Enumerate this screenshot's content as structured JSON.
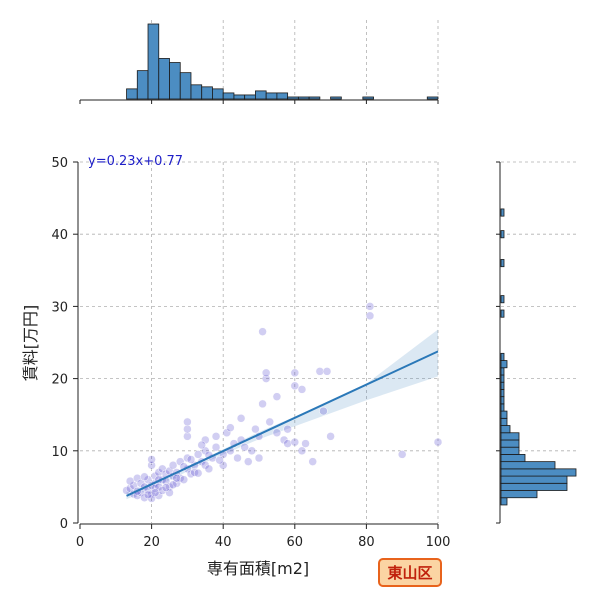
{
  "chart_data": {
    "type": "scatter",
    "title": "",
    "xlabel": "専有面積[m2]",
    "ylabel": "賃料[万円]",
    "xlim": [
      0,
      100
    ],
    "ylim": [
      0,
      50
    ],
    "xticks": [
      0,
      20,
      40,
      60,
      80,
      100
    ],
    "yticks": [
      0,
      10,
      20,
      30,
      40,
      50
    ],
    "grid": true,
    "regression": {
      "equation": "y=0.23x+0.77",
      "slope": 0.23,
      "intercept": 0.77,
      "x_range": [
        13,
        100
      ],
      "ci_lower": [
        [
          13,
          3.3
        ],
        [
          25,
          5.9
        ],
        [
          35,
          8.4
        ],
        [
          50,
          11.6
        ],
        [
          65,
          14.3
        ],
        [
          80,
          17.0
        ],
        [
          100,
          20.3
        ]
      ],
      "ci_upper": [
        [
          13,
          4.3
        ],
        [
          25,
          6.6
        ],
        [
          35,
          9.0
        ],
        [
          50,
          12.6
        ],
        [
          65,
          15.8
        ],
        [
          80,
          19.3
        ],
        [
          100,
          26.8
        ]
      ]
    },
    "points": [
      [
        13,
        4.5
      ],
      [
        14,
        4.8
      ],
      [
        15,
        5.2
      ],
      [
        15,
        4.0
      ],
      [
        16,
        3.8
      ],
      [
        16,
        6.2
      ],
      [
        17,
        5.5
      ],
      [
        17,
        4.2
      ],
      [
        18,
        5.0
      ],
      [
        18,
        3.5
      ],
      [
        19,
        4.6
      ],
      [
        19,
        6.0
      ],
      [
        20,
        5.2
      ],
      [
        20,
        8.0
      ],
      [
        20,
        8.8
      ],
      [
        20,
        4.0
      ],
      [
        20,
        3.4
      ],
      [
        21,
        5.5
      ],
      [
        21,
        6.5
      ],
      [
        21,
        4.8
      ],
      [
        22,
        7.0
      ],
      [
        22,
        5.0
      ],
      [
        22,
        3.8
      ],
      [
        23,
        6.0
      ],
      [
        23,
        4.5
      ],
      [
        23,
        7.5
      ],
      [
        24,
        5.8
      ],
      [
        24,
        6.8
      ],
      [
        25,
        5.0
      ],
      [
        25,
        7.2
      ],
      [
        25,
        4.2
      ],
      [
        26,
        6.5
      ],
      [
        26,
        8.0
      ],
      [
        27,
        5.5
      ],
      [
        27,
        7.0
      ],
      [
        28,
        6.2
      ],
      [
        28,
        8.5
      ],
      [
        29,
        6.0
      ],
      [
        30,
        7.5
      ],
      [
        30,
        12.0
      ],
      [
        30,
        13.0
      ],
      [
        30,
        14.0
      ],
      [
        30,
        9.0
      ],
      [
        31,
        6.8
      ],
      [
        32,
        8.0
      ],
      [
        32,
        7.0
      ],
      [
        33,
        9.5
      ],
      [
        34,
        8.5
      ],
      [
        35,
        8.0
      ],
      [
        35,
        10.0
      ],
      [
        35,
        11.5
      ],
      [
        36,
        7.5
      ],
      [
        37,
        9.0
      ],
      [
        38,
        10.5
      ],
      [
        38,
        12.0
      ],
      [
        40,
        9.5
      ],
      [
        40,
        8.0
      ],
      [
        41,
        12.5
      ],
      [
        42,
        10.0
      ],
      [
        43,
        11.0
      ],
      [
        44,
        9.0
      ],
      [
        45,
        11.5
      ],
      [
        45,
        14.5
      ],
      [
        47,
        8.5
      ],
      [
        48,
        10.0
      ],
      [
        50,
        9.0
      ],
      [
        50,
        12.0
      ],
      [
        51,
        16.5
      ],
      [
        52,
        20.0
      ],
      [
        52,
        20.8
      ],
      [
        51,
        26.5
      ],
      [
        53,
        14.0
      ],
      [
        55,
        12.5
      ],
      [
        55,
        17.5
      ],
      [
        57,
        11.5
      ],
      [
        58,
        13.0
      ],
      [
        58,
        11.0
      ],
      [
        60,
        20.8
      ],
      [
        60,
        11.2
      ],
      [
        60,
        19.0
      ],
      [
        62,
        18.5
      ],
      [
        62,
        10.0
      ],
      [
        63,
        11.0
      ],
      [
        65,
        8.5
      ],
      [
        67,
        21.0
      ],
      [
        68,
        15.5
      ],
      [
        69,
        21.0
      ],
      [
        70,
        12.0
      ],
      [
        81,
        30.0
      ],
      [
        81,
        28.7
      ],
      [
        90,
        9.5
      ],
      [
        100,
        11.2
      ],
      [
        14,
        5.8
      ],
      [
        16,
        4.4
      ],
      [
        18,
        6.4
      ],
      [
        19,
        3.9
      ],
      [
        21,
        4.2
      ],
      [
        22,
        6.0
      ],
      [
        24,
        4.9
      ],
      [
        26,
        5.3
      ],
      [
        27,
        6.2
      ],
      [
        29,
        7.8
      ],
      [
        31,
        8.8
      ],
      [
        33,
        6.9
      ],
      [
        34,
        10.8
      ],
      [
        36,
        9.4
      ],
      [
        39,
        8.7
      ],
      [
        42,
        13.2
      ],
      [
        46,
        10.5
      ],
      [
        49,
        13.0
      ]
    ],
    "x_hist": {
      "bin_edges": [
        13,
        16,
        19,
        22,
        25,
        28,
        31,
        34,
        37,
        40,
        43,
        46,
        49,
        52,
        55,
        58,
        61,
        64,
        67,
        70,
        73,
        76,
        79,
        82,
        85,
        88,
        91,
        94,
        97,
        100
      ],
      "counts": [
        5,
        14,
        37,
        20,
        18,
        13,
        7,
        6,
        5,
        3,
        2,
        2,
        4,
        3,
        3,
        1,
        1,
        1,
        0,
        1,
        0,
        0,
        1,
        0,
        0,
        0,
        0,
        0,
        1
      ]
    },
    "y_hist": {
      "bin_edges": [
        2.5,
        3.5,
        4.5,
        5.5,
        6.5,
        7.5,
        8.5,
        9.5,
        10.5,
        11.5,
        12.5,
        13.5,
        14.5,
        15.5,
        16.5,
        17.5,
        18.5,
        19.5,
        20.5,
        21.5,
        22.5,
        23.5,
        24.5,
        25.5,
        26.5,
        27.5,
        28.5,
        29.5,
        30.5,
        31.5,
        32.5,
        33.5,
        34.5,
        35.5,
        36.5,
        37.5,
        38.5,
        39.5,
        40.5,
        41.5,
        42.5,
        43.5
      ],
      "counts": [
        2,
        12,
        22,
        22,
        25,
        18,
        8,
        6,
        6,
        6,
        3,
        2,
        2,
        1,
        1,
        1,
        1,
        1,
        1,
        2,
        1,
        0,
        0,
        0,
        0,
        0,
        1,
        0,
        1,
        0,
        0,
        0,
        0,
        1,
        0,
        0,
        0,
        1,
        0,
        0,
        1
      ]
    }
  },
  "badge": {
    "label": "東山区",
    "bg_color": "#fbd4a3",
    "border_color": "#e8631c",
    "text_color": "#c0200c"
  }
}
